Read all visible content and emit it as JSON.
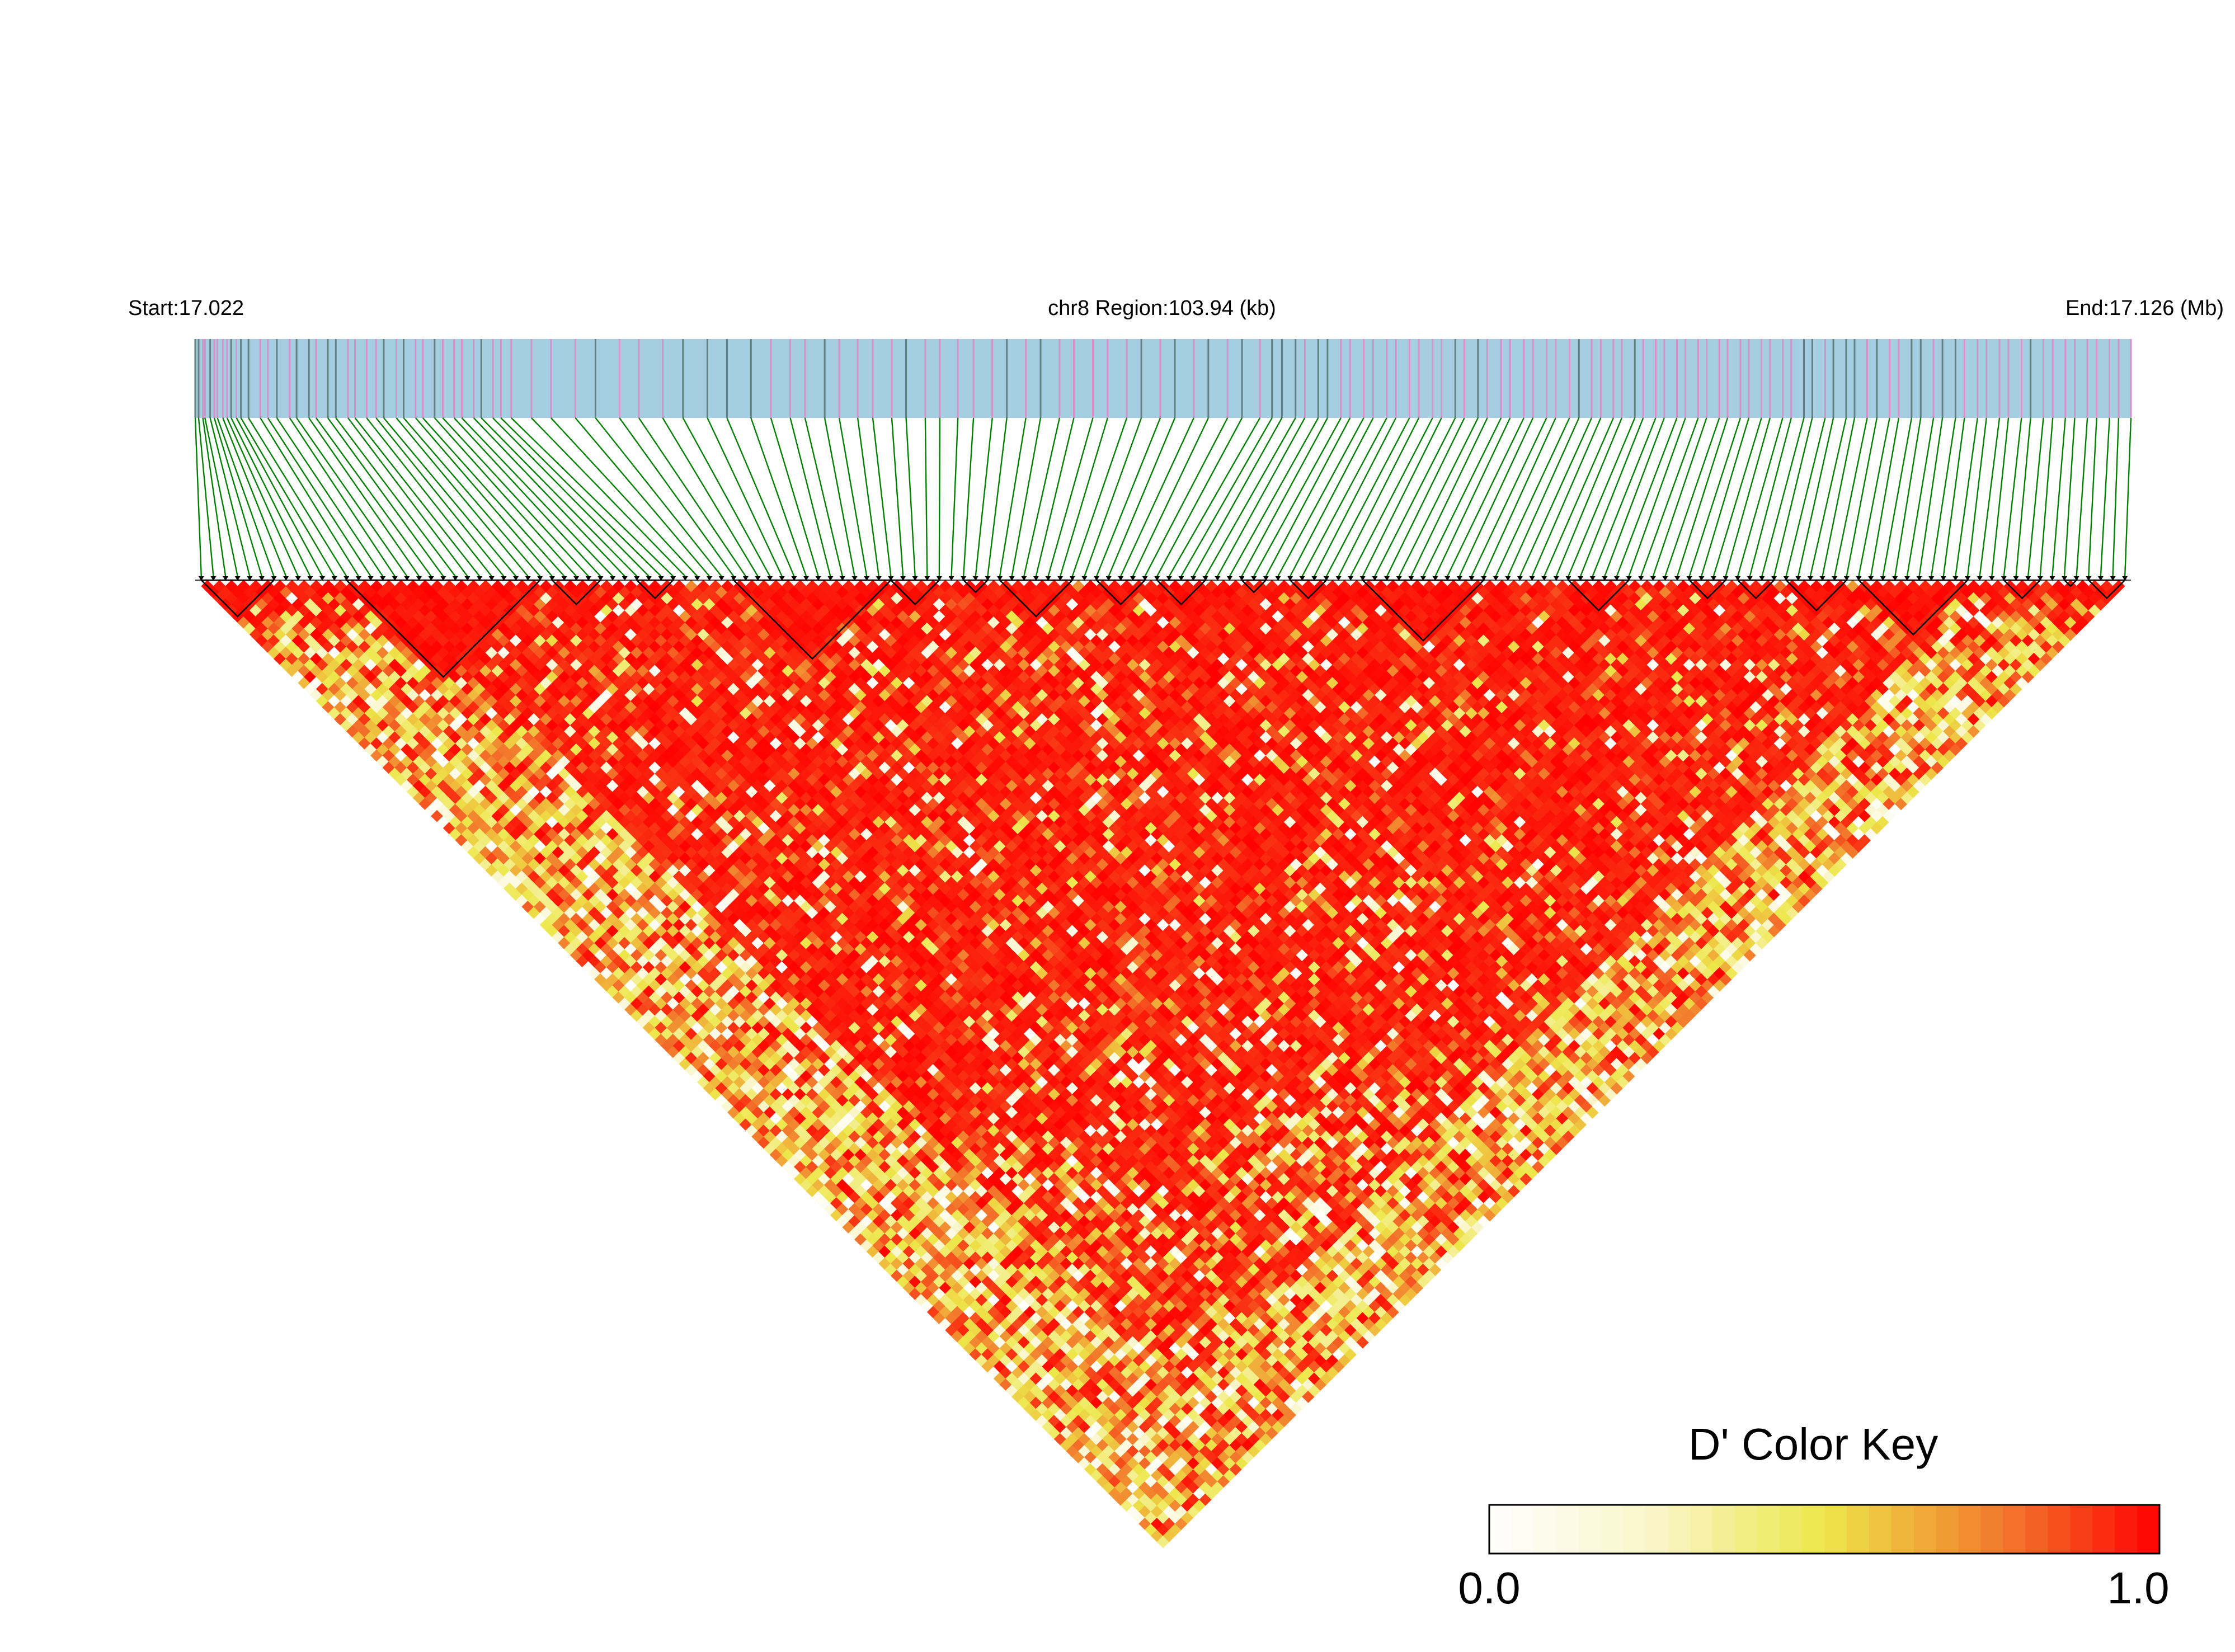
{
  "header": {
    "start_label": "Start:17.022",
    "region_label": "chr8 Region:103.94 (kb)",
    "end_label": "End:17.126 (Mb)"
  },
  "colors": {
    "bar": "#a6cee3",
    "tick_pink": "#d98fca",
    "tick_gray": "#64807f",
    "link": "#008000",
    "outline": "#000000"
  },
  "chart_data": {
    "type": "heatmap",
    "start_mb": 17.022,
    "end_mb": 17.126,
    "region_kb": 103.94,
    "snp_positions_kb": [
      0.0,
      0.18,
      0.41,
      0.52,
      0.8,
      1.02,
      1.19,
      1.48,
      1.71,
      1.93,
      2.21,
      2.45,
      2.86,
      3.49,
      3.9,
      4.38,
      5.07,
      5.44,
      6.1,
      6.49,
      7.12,
      7.55,
      8.2,
      8.58,
      9.2,
      9.71,
      10.12,
      10.8,
      11.19,
      11.83,
      12.22,
      12.85,
      13.29,
      13.9,
      14.31,
      14.95,
      15.36,
      15.98,
      16.41,
      16.97,
      18.05,
      19.1,
      20.41,
      21.49,
      22.78,
      23.82,
      25.1,
      26.19,
      27.5,
      28.55,
      29.84,
      30.91,
      31.95,
      32.74,
      33.8,
      34.58,
      35.57,
      36.38,
      37.4,
      38.17,
      39.2,
      39.98,
      40.95,
      41.79,
      42.8,
      43.58,
      44.6,
      45.39,
      46.41,
      47.18,
      48.2,
      48.99,
      50.02,
      50.8,
      51.82,
      52.6,
      53.62,
      54.4,
      55.43,
      56.21,
      57.17,
      57.82,
      58.35,
      59.08,
      59.58,
      60.3,
      60.8,
      61.52,
      62.01,
      62.74,
      63.25,
      63.98,
      64.47,
      65.2,
      65.7,
      66.44,
      66.92,
      67.66,
      68.15,
      68.88,
      69.38,
      70.12,
      70.6,
      71.34,
      71.83,
      72.56,
      73.05,
      73.79,
      74.3,
      74.98,
      75.47,
      76.15,
      76.6,
      77.3,
      77.75,
      78.42,
      78.88,
      79.56,
      80.02,
      80.7,
      81.15,
      81.84,
      82.28,
      82.97,
      83.42,
      84.1,
      84.56,
      85.24,
      85.7,
      86.38,
      86.83,
      87.52,
      87.96,
      88.65,
      89.1,
      89.78,
      90.3,
      90.98,
      91.47,
      92.16,
      92.65,
      93.34,
      93.82,
      94.52,
      95.0,
      95.7,
      96.18,
      96.88,
      97.36,
      98.06,
      98.55,
      99.24,
      99.74,
      100.42,
      100.92,
      101.6,
      102.1,
      102.79,
      103.28,
      103.94
    ],
    "ld_blocks": [
      [
        0,
        6
      ],
      [
        12,
        28
      ],
      [
        29,
        33
      ],
      [
        36,
        39
      ],
      [
        44,
        57
      ],
      [
        57,
        61
      ],
      [
        63,
        65
      ],
      [
        66,
        72
      ],
      [
        74,
        78
      ],
      [
        79,
        83
      ],
      [
        86,
        88
      ],
      [
        90,
        93
      ],
      [
        96,
        106
      ],
      [
        113,
        118
      ],
      [
        123,
        126
      ],
      [
        127,
        130
      ],
      [
        131,
        136
      ],
      [
        137,
        146
      ],
      [
        149,
        152
      ],
      [
        154,
        155
      ],
      [
        156,
        159
      ]
    ],
    "color_key": {
      "title": "D' Color Key",
      "min": 0.0,
      "max": 1.0,
      "min_label": "0.0",
      "max_label": "1.0",
      "bins": 30,
      "stops": [
        [
          0.0,
          "#ffffff"
        ],
        [
          0.25,
          "#f9f5c7"
        ],
        [
          0.5,
          "#ede74a"
        ],
        [
          0.62,
          "#f0b53c"
        ],
        [
          0.8,
          "#f36a28"
        ],
        [
          1.0,
          "#ff0000"
        ]
      ]
    }
  }
}
